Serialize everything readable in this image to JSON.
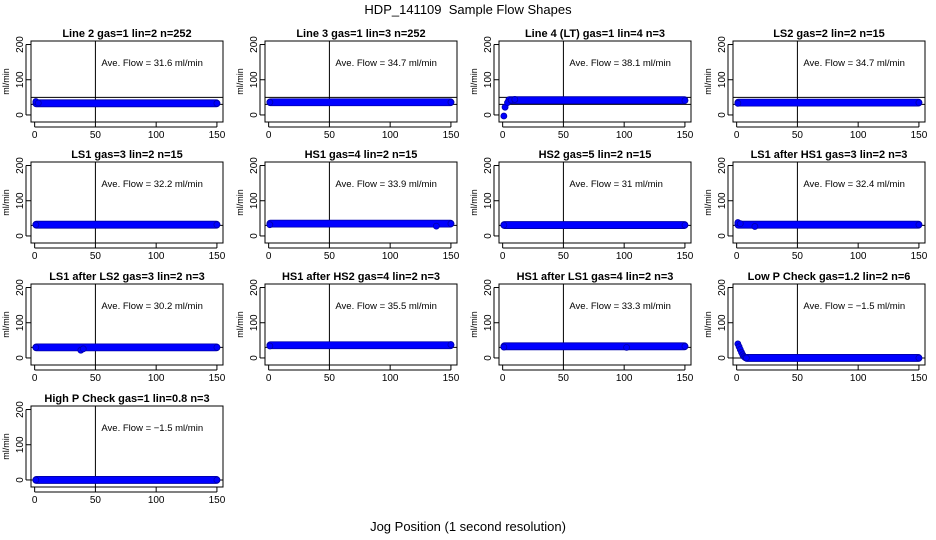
{
  "figure": {
    "title": "HDP_141109  Sample Flow Shapes",
    "xlabel": "Jog Position (1 second resolution)"
  },
  "chart_data": [
    {
      "type": "scatter",
      "title": "Line 2 gas=1 lin=2 n=252",
      "ylabel": "ml/min",
      "annotation": "Ave. Flow =  31.6  ml/min",
      "color": "#0000ff",
      "ylim": [
        -20,
        210
      ],
      "xlim": [
        -3,
        155
      ],
      "yticks": [
        0,
        100,
        200
      ],
      "xticks": [
        0,
        50,
        100,
        150
      ],
      "hlines": [
        30,
        50
      ],
      "vline": 50,
      "points": [
        [
          1,
          38
        ],
        [
          3,
          34
        ],
        [
          150,
          33
        ]
      ],
      "band": {
        "x": [
          1,
          150
        ],
        "y": 33
      }
    },
    {
      "type": "scatter",
      "title": "Line 3 gas=1 lin=3 n=252",
      "ylabel": "ml/min",
      "annotation": "Ave. Flow =  34.7  ml/min",
      "color": "#0000ff",
      "ylim": [
        -20,
        210
      ],
      "xlim": [
        -3,
        155
      ],
      "yticks": [
        0,
        100,
        200
      ],
      "xticks": [
        0,
        50,
        100,
        150
      ],
      "hlines": [
        30,
        50
      ],
      "vline": 50,
      "points": [
        [
          1,
          36
        ],
        [
          150,
          36
        ]
      ],
      "band": {
        "x": [
          1,
          150
        ],
        "y": 36
      }
    },
    {
      "type": "scatter",
      "title": "Line 4 (LT) gas=1 lin=4 n=3",
      "ylabel": "ml/min",
      "annotation": "Ave. Flow =  38.1  ml/min",
      "color": "#0000ff",
      "ylim": [
        -20,
        210
      ],
      "xlim": [
        -3,
        155
      ],
      "yticks": [
        0,
        100,
        200
      ],
      "xticks": [
        0,
        50,
        100,
        150
      ],
      "hlines": [
        30,
        50
      ],
      "vline": 50,
      "points": [
        [
          1,
          -3
        ],
        [
          2,
          22
        ],
        [
          4,
          35
        ],
        [
          7,
          42
        ],
        [
          10,
          44
        ],
        [
          150,
          41
        ]
      ],
      "band": {
        "x": [
          5,
          150
        ],
        "y": 42
      }
    },
    {
      "type": "scatter",
      "title": "LS2 gas=2 lin=2 n=15",
      "ylabel": "ml/min",
      "annotation": "Ave. Flow =  34.7  ml/min",
      "color": "#0000ff",
      "ylim": [
        -20,
        210
      ],
      "xlim": [
        -3,
        155
      ],
      "yticks": [
        0,
        100,
        200
      ],
      "xticks": [
        0,
        50,
        100,
        150
      ],
      "hlines": [
        30,
        50
      ],
      "vline": 50,
      "points": [
        [
          1,
          33
        ],
        [
          150,
          35
        ]
      ],
      "band": {
        "x": [
          1,
          150
        ],
        "y": 35
      }
    },
    {
      "type": "scatter",
      "title": "LS1 gas=3 lin=2 n=15",
      "ylabel": "ml/min",
      "annotation": "Ave. Flow =  32.2  ml/min",
      "color": "#0000ff",
      "ylim": [
        -20,
        210
      ],
      "xlim": [
        -3,
        155
      ],
      "yticks": [
        0,
        100,
        200
      ],
      "xticks": [
        0,
        50,
        100,
        150
      ],
      "hlines": [
        30
      ],
      "vline": 50,
      "points": [
        [
          1,
          32
        ],
        [
          150,
          32
        ]
      ],
      "band": {
        "x": [
          1,
          150
        ],
        "y": 32
      }
    },
    {
      "type": "scatter",
      "title": "HS1 gas=4 lin=2 n=15",
      "ylabel": "ml/min",
      "annotation": "Ave. Flow =  33.9  ml/min",
      "color": "#0000ff",
      "ylim": [
        -20,
        210
      ],
      "xlim": [
        -3,
        155
      ],
      "yticks": [
        0,
        100,
        200
      ],
      "xticks": [
        0,
        50,
        100,
        150
      ],
      "hlines": [
        30
      ],
      "vline": 50,
      "points": [
        [
          1,
          32
        ],
        [
          138,
          28
        ],
        [
          150,
          35
        ]
      ],
      "band": {
        "x": [
          1,
          150
        ],
        "y": 35
      }
    },
    {
      "type": "scatter",
      "title": "HS2 gas=5 lin=2 n=15",
      "ylabel": "ml/min",
      "annotation": "Ave. Flow =  31  ml/min",
      "color": "#0000ff",
      "ylim": [
        -20,
        210
      ],
      "xlim": [
        -3,
        155
      ],
      "yticks": [
        0,
        100,
        200
      ],
      "xticks": [
        0,
        50,
        100,
        150
      ],
      "hlines": [
        30
      ],
      "vline": 50,
      "points": [
        [
          1,
          31
        ],
        [
          150,
          31
        ]
      ],
      "band": {
        "x": [
          1,
          150
        ],
        "y": 31
      }
    },
    {
      "type": "scatter",
      "title": "LS1 after HS1 gas=3 lin=2 n=3",
      "ylabel": "ml/min",
      "annotation": "Ave. Flow =  32.4  ml/min",
      "color": "#0000ff",
      "ylim": [
        -20,
        210
      ],
      "xlim": [
        -3,
        155
      ],
      "yticks": [
        0,
        100,
        200
      ],
      "xticks": [
        0,
        50,
        100,
        150
      ],
      "hlines": [
        30
      ],
      "vline": 50,
      "points": [
        [
          1,
          38
        ],
        [
          3,
          35
        ],
        [
          15,
          27
        ],
        [
          150,
          32
        ]
      ],
      "band": {
        "x": [
          1,
          150
        ],
        "y": 32
      }
    },
    {
      "type": "scatter",
      "title": "LS1 after LS2 gas=3 lin=2 n=3",
      "ylabel": "ml/min",
      "annotation": "Ave. Flow =  30.2  ml/min",
      "color": "#0000ff",
      "ylim": [
        -20,
        210
      ],
      "xlim": [
        -3,
        155
      ],
      "yticks": [
        0,
        100,
        200
      ],
      "xticks": [
        0,
        50,
        100,
        150
      ],
      "hlines": [
        30
      ],
      "vline": 50,
      "points": [
        [
          1,
          30
        ],
        [
          38,
          22
        ],
        [
          40,
          26
        ],
        [
          150,
          30
        ]
      ],
      "band": {
        "x": [
          1,
          150
        ],
        "y": 30
      }
    },
    {
      "type": "scatter",
      "title": "HS1 after HS2 gas=4 lin=2 n=3",
      "ylabel": "ml/min",
      "annotation": "Ave. Flow =  35.5  ml/min",
      "color": "#0000ff",
      "ylim": [
        -20,
        210
      ],
      "xlim": [
        -3,
        155
      ],
      "yticks": [
        0,
        100,
        200
      ],
      "xticks": [
        0,
        50,
        100,
        150
      ],
      "hlines": [
        30
      ],
      "vline": 50,
      "points": [
        [
          1,
          34
        ],
        [
          150,
          38
        ]
      ],
      "band": {
        "x": [
          1,
          150
        ],
        "y": 36
      }
    },
    {
      "type": "scatter",
      "title": "HS1 after LS1 gas=4 lin=2 n=3",
      "ylabel": "ml/min",
      "annotation": "Ave. Flow =  33.3  ml/min",
      "color": "#0000ff",
      "ylim": [
        -20,
        210
      ],
      "xlim": [
        -3,
        155
      ],
      "yticks": [
        0,
        100,
        200
      ],
      "xticks": [
        0,
        50,
        100,
        150
      ],
      "hlines": [
        30
      ],
      "vline": 50,
      "points": [
        [
          1,
          31
        ],
        [
          102,
          30
        ],
        [
          150,
          33
        ]
      ],
      "band": {
        "x": [
          1,
          150
        ],
        "y": 33
      }
    },
    {
      "type": "scatter",
      "title": "Low P Check gas=1.2 lin=2 n=6",
      "ylabel": "ml/min",
      "annotation": "Ave. Flow =  −1.5  ml/min",
      "color": "#0000ff",
      "ylim": [
        -20,
        210
      ],
      "xlim": [
        -3,
        155
      ],
      "yticks": [
        0,
        100,
        200
      ],
      "xticks": [
        0,
        50,
        100,
        150
      ],
      "hlines": [
        0
      ],
      "vline": 50,
      "points": [
        [
          1,
          40
        ],
        [
          2,
          32
        ],
        [
          3,
          24
        ],
        [
          4,
          16
        ],
        [
          5,
          9
        ],
        [
          6,
          4
        ],
        [
          7,
          1
        ],
        [
          8,
          0
        ],
        [
          150,
          0
        ]
      ],
      "band": {
        "x": [
          8,
          150
        ],
        "y": 0
      }
    },
    {
      "type": "scatter",
      "title": "High P Check gas=1 lin=0.8 n=3",
      "ylabel": "ml/min",
      "annotation": "Ave. Flow =  −1.5  ml/min",
      "color": "#0000ff",
      "ylim": [
        -20,
        210
      ],
      "xlim": [
        -3,
        155
      ],
      "yticks": [
        0,
        100,
        200
      ],
      "xticks": [
        0,
        50,
        100,
        150
      ],
      "hlines": [
        0
      ],
      "vline": 50,
      "points": [
        [
          1,
          0
        ],
        [
          150,
          0
        ]
      ],
      "band": {
        "x": [
          1,
          150
        ],
        "y": 0
      }
    }
  ]
}
